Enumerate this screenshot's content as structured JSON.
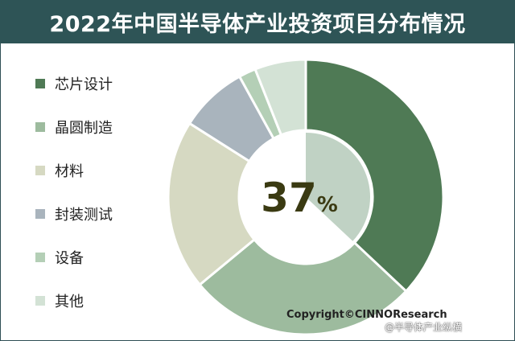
{
  "title": "2022年中国半导体产业投资项目分布情况",
  "colors": {
    "title_bar": "#2e5456",
    "center_disk": "#ffffff"
  },
  "chart_data": {
    "type": "pie",
    "variant": "donut",
    "title": "2022年中国半导体产业投资项目分布情况",
    "series": [
      {
        "name": "",
        "categories": [
          "芯片设计",
          "晶圆制造",
          "材料",
          "封装测试",
          "设备",
          "其他"
        ],
        "values": [
          37,
          27,
          20,
          8,
          2,
          6
        ],
        "unit": "%"
      }
    ],
    "slice_colors": [
      "#4f7a55",
      "#9dbb9e",
      "#d6d9c2",
      "#a9b4bd",
      "#b4cfb6",
      "#d3e2d5"
    ],
    "highlight_colors": [
      "#c0d2c4"
    ],
    "center_label": {
      "value": "37",
      "unit": "%"
    },
    "legend": {
      "position": "left",
      "entries": [
        "芯片设计",
        "晶圆制造",
        "材料",
        "封装测试",
        "设备",
        "其他"
      ]
    },
    "start_angle": "12 o'clock",
    "direction": "clockwise"
  },
  "footer": {
    "copyright": "Copyright©CINNOResearch",
    "watermark": "@半导体产业纵横"
  }
}
